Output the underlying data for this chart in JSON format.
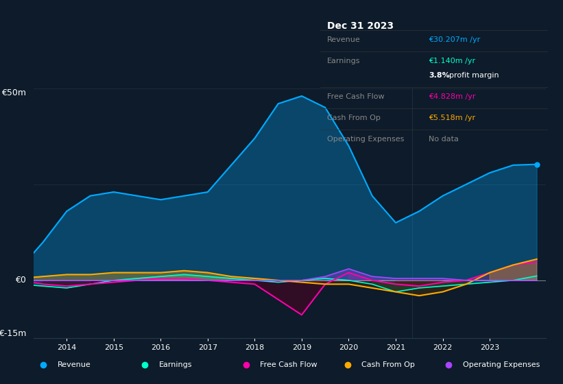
{
  "bg_color": "#0d1b2a",
  "plot_bg_color": "#0d1b2a",
  "years": [
    2013.0,
    2013.5,
    2014.0,
    2014.5,
    2015.0,
    2015.5,
    2016.0,
    2016.5,
    2017.0,
    2017.5,
    2018.0,
    2018.5,
    2019.0,
    2019.5,
    2020.0,
    2020.5,
    2021.0,
    2021.5,
    2022.0,
    2022.5,
    2023.0,
    2023.5,
    2024.0
  ],
  "revenue": [
    3,
    10,
    18,
    22,
    23,
    22,
    21,
    22,
    23,
    30,
    37,
    46,
    48,
    45,
    35,
    22,
    15,
    18,
    22,
    25,
    28,
    30,
    30.207
  ],
  "earnings": [
    -1,
    -1.5,
    -2,
    -1,
    0,
    0.5,
    1,
    1.5,
    1,
    0.5,
    0,
    -0.5,
    0,
    0.5,
    0,
    -1,
    -3,
    -2,
    -1.5,
    -1,
    -0.5,
    0,
    1.14
  ],
  "free_cash_flow": [
    0,
    -1,
    -1.5,
    -1,
    -0.5,
    0,
    0.5,
    0.5,
    0,
    -0.5,
    -1,
    -5,
    -9,
    -1,
    2,
    0,
    -1,
    -1.5,
    -0.5,
    0,
    2,
    4,
    4.828
  ],
  "cash_from_op": [
    0.5,
    1,
    1.5,
    1.5,
    2,
    2,
    2,
    2.5,
    2,
    1,
    0.5,
    0,
    -0.5,
    -1,
    -1,
    -2,
    -3,
    -4,
    -3,
    -1,
    2,
    4,
    5.518
  ],
  "operating_expenses": [
    0,
    0,
    0,
    0,
    0,
    0,
    0,
    0,
    0,
    0,
    0,
    0,
    0,
    1,
    3,
    1,
    0.5,
    0.5,
    0.5,
    0,
    0,
    0,
    0
  ],
  "revenue_color": "#00aaff",
  "earnings_color": "#00ffcc",
  "fcf_color": "#ff00aa",
  "cashop_color": "#ffaa00",
  "opex_color": "#aa44ff",
  "ylim": [
    -15,
    50
  ],
  "ytick_labels": [
    "€-15m",
    "€0",
    "€50m"
  ],
  "xtick_years": [
    2014,
    2015,
    2016,
    2017,
    2018,
    2019,
    2020,
    2021,
    2022,
    2023
  ],
  "info_box": {
    "title": "Dec 31 2023",
    "rows": [
      {
        "label": "Revenue",
        "value": "€30.207m /yr",
        "value_color": "#00aaff"
      },
      {
        "label": "Earnings",
        "value": "€1.140m /yr",
        "value_color": "#00ffcc"
      },
      {
        "label": "",
        "value": "3.8% profit margin",
        "value_color": "#ffffff"
      },
      {
        "label": "Free Cash Flow",
        "value": "€4.828m /yr",
        "value_color": "#ff00aa"
      },
      {
        "label": "Cash From Op",
        "value": "€5.518m /yr",
        "value_color": "#ffaa00"
      },
      {
        "label": "Operating Expenses",
        "value": "No data",
        "value_color": "#888888"
      }
    ]
  },
  "legend": [
    {
      "label": "Revenue",
      "color": "#00aaff"
    },
    {
      "label": "Earnings",
      "color": "#00ffcc"
    },
    {
      "label": "Free Cash Flow",
      "color": "#ff00aa"
    },
    {
      "label": "Cash From Op",
      "color": "#ffaa00"
    },
    {
      "label": "Operating Expenses",
      "color": "#aa44ff"
    }
  ]
}
